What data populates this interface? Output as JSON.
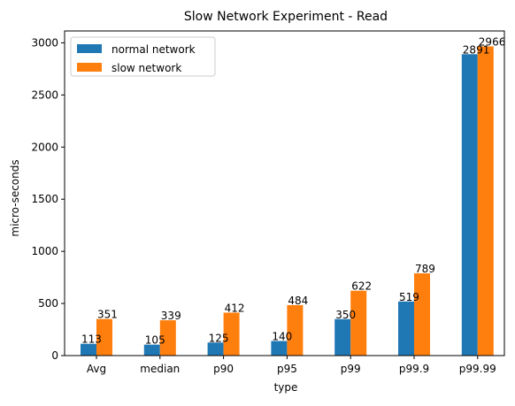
{
  "chart_data": {
    "type": "bar",
    "title": "Slow Network Experiment - Read",
    "xlabel": "type",
    "ylabel": "micro-seconds",
    "categories": [
      "Avg",
      "median",
      "p90",
      "p95",
      "p99",
      "p99.9",
      "p99.99"
    ],
    "series": [
      {
        "name": "normal network",
        "color": "#1f77b4",
        "values": [
          113,
          105,
          125,
          140,
          350,
          519,
          2891
        ]
      },
      {
        "name": "slow network",
        "color": "#ff7f0e",
        "values": [
          351,
          339,
          412,
          484,
          622,
          789,
          2966
        ]
      }
    ],
    "ylim": [
      0,
      3114
    ],
    "yticks": [
      0,
      500,
      1000,
      1500,
      2000,
      2500,
      3000
    ],
    "grid": false,
    "legend": "top-left"
  }
}
